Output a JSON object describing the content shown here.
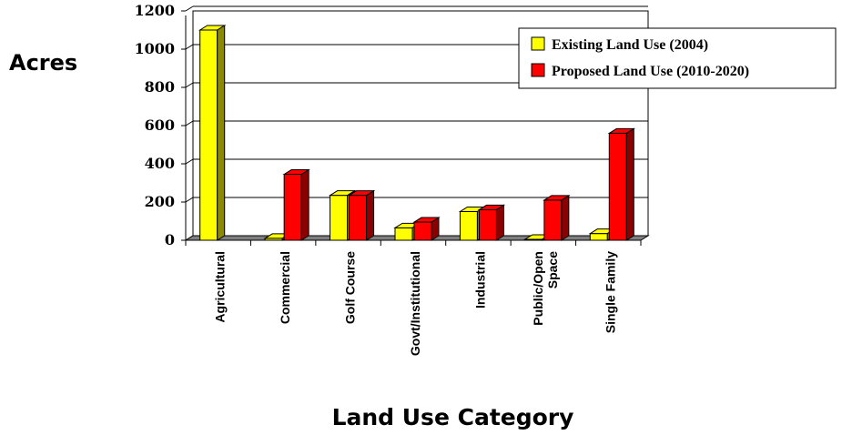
{
  "chart_data": {
    "type": "bar",
    "title": "",
    "ylabel": "Acres",
    "xlabel": "Land Use Category",
    "ylim": [
      0,
      1200
    ],
    "yticks": [
      0,
      200,
      400,
      600,
      800,
      1000,
      1200
    ],
    "grid": true,
    "legend_position": "top-right",
    "categories": [
      [
        "Agricultural"
      ],
      [
        "Commercial"
      ],
      [
        "Golf Course"
      ],
      [
        "Govt/Institutional"
      ],
      [
        "Industrial"
      ],
      [
        "Public/Open",
        "Space"
      ],
      [
        "Single Family"
      ]
    ],
    "series": [
      {
        "name": "Existing Land Use (2004)",
        "color": "#ffff00",
        "side": "#8a8a00",
        "values": [
          1100,
          10,
          235,
          65,
          150,
          5,
          35
        ]
      },
      {
        "name": "Proposed Land Use (2010-2020)",
        "color": "#ff0000",
        "side": "#8b0000",
        "values": [
          0,
          345,
          235,
          95,
          160,
          210,
          560
        ]
      }
    ]
  }
}
